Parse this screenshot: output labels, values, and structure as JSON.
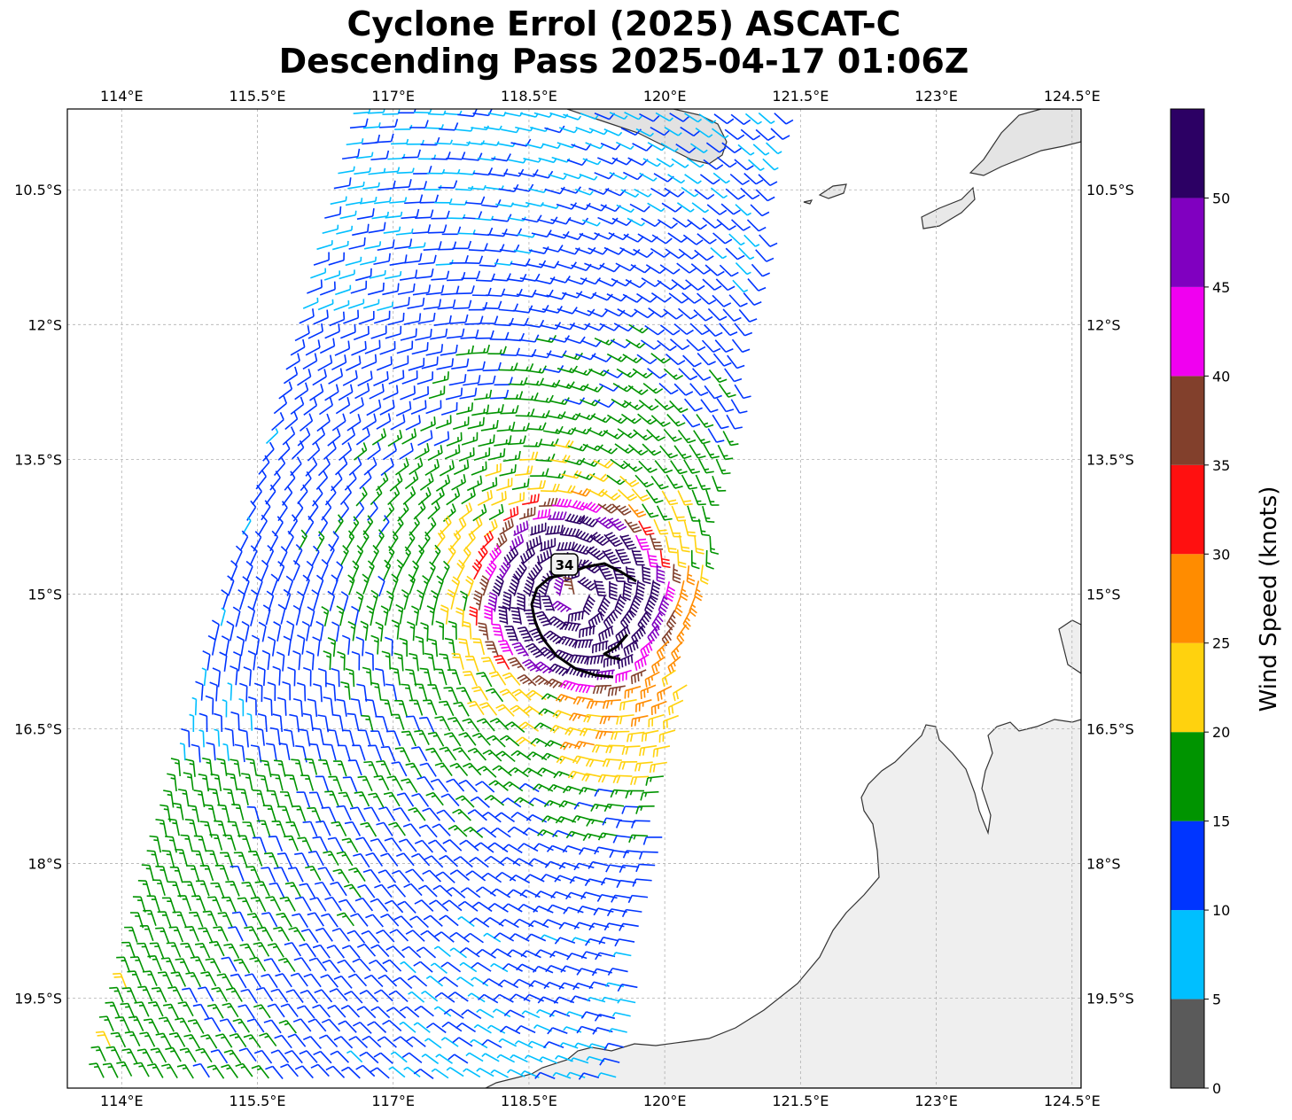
{
  "title": {
    "line1": "Cyclone Errol (2025) ASCAT-C",
    "line2": "Descending Pass 2025-04-17 01:06Z"
  },
  "map": {
    "lon_range": [
      113.4,
      124.6
    ],
    "lat_range": [
      -20.5,
      -9.6
    ],
    "lon_ticks": [
      "114°E",
      "115.5°E",
      "117°E",
      "118.5°E",
      "120°E",
      "121.5°E",
      "123°E",
      "124.5°E"
    ],
    "lon_tick_values": [
      114,
      115.5,
      117,
      118.5,
      120,
      121.5,
      123,
      124.5
    ],
    "lat_ticks": [
      "10.5°S",
      "12°S",
      "13.5°S",
      "15°S",
      "16.5°S",
      "18°S",
      "19.5°S"
    ],
    "lat_tick_values": [
      -10.5,
      -12,
      -13.5,
      -15,
      -16.5,
      -18,
      -19.5
    ],
    "gridlines": true,
    "storm_center": {
      "lon": 119.0,
      "lat": -15.0
    },
    "wind_radius_label": "34",
    "land_color": "#f0f0f0",
    "coast_color": "#333333"
  },
  "colorbar": {
    "label": "Wind Speed (knots)",
    "tick_labels": [
      "0",
      "5",
      "10",
      "15",
      "20",
      "25",
      "30",
      "35",
      "40",
      "45",
      "50"
    ],
    "bins": [
      {
        "min": 0,
        "max": 5,
        "color": "#5a5a5a"
      },
      {
        "min": 5,
        "max": 10,
        "color": "#00bfff"
      },
      {
        "min": 10,
        "max": 15,
        "color": "#0035ff"
      },
      {
        "min": 15,
        "max": 20,
        "color": "#009400"
      },
      {
        "min": 20,
        "max": 25,
        "color": "#ffd20e"
      },
      {
        "min": 25,
        "max": 30,
        "color": "#ff8c00"
      },
      {
        "min": 30,
        "max": 35,
        "color": "#ff1010"
      },
      {
        "min": 35,
        "max": 40,
        "color": "#82402c"
      },
      {
        "min": 40,
        "max": 45,
        "color": "#f000f0"
      },
      {
        "min": 45,
        "max": 50,
        "color": "#8000c0"
      },
      {
        "min": 50,
        "max": 55,
        "color": "#2c0064"
      }
    ]
  }
}
